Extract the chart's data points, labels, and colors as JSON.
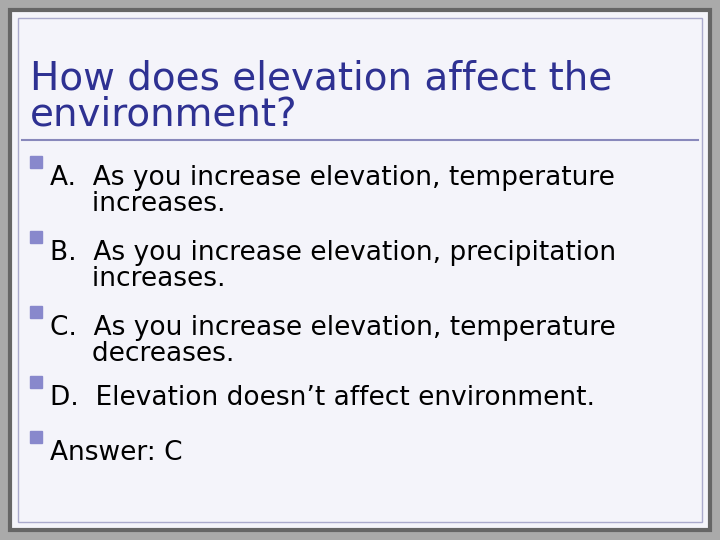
{
  "title_line1": "How does elevation affect the",
  "title_line2": "environment?",
  "title_color": "#2E3192",
  "title_fontsize": 28,
  "separator_color": "#8888BB",
  "card_bg": "#F4F4FA",
  "outer_bg": "#AAAAAA",
  "card_border_color": "#666666",
  "inner_border_color": "#AAAACC",
  "bullet_color": "#8888CC",
  "bullet_items": [
    [
      "A.  As you increase elevation, temperature",
      "     increases."
    ],
    [
      "B.  As you increase elevation, precipitation",
      "     increases."
    ],
    [
      "C.  As you increase elevation, temperature",
      "     decreases."
    ],
    [
      "D.  Elevation doesn’t affect environment.",
      ""
    ],
    [
      "Answer: C",
      ""
    ]
  ],
  "bullet_fontsize": 19,
  "text_color": "#000000"
}
